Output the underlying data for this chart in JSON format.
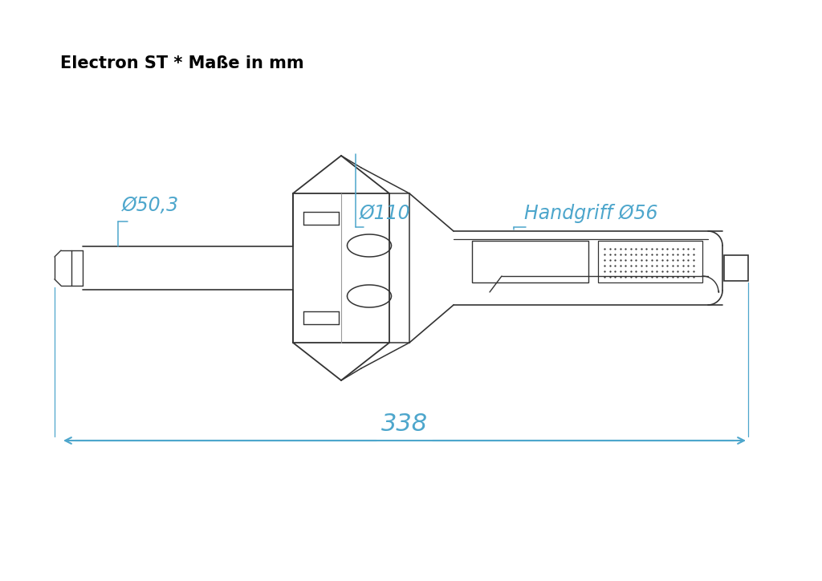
{
  "title": "Electron ST * Maße in mm",
  "title_fontsize": 15,
  "dim_color": "#4da6cc",
  "line_color": "#333333",
  "bg_color": "#ffffff",
  "dim_fontsize": 17,
  "label_50": "Ø50,3",
  "label_110": "Ø110",
  "label_56": "Handgriff Ø56",
  "label_338": "338",
  "figsize": [
    10.24,
    7.24
  ]
}
